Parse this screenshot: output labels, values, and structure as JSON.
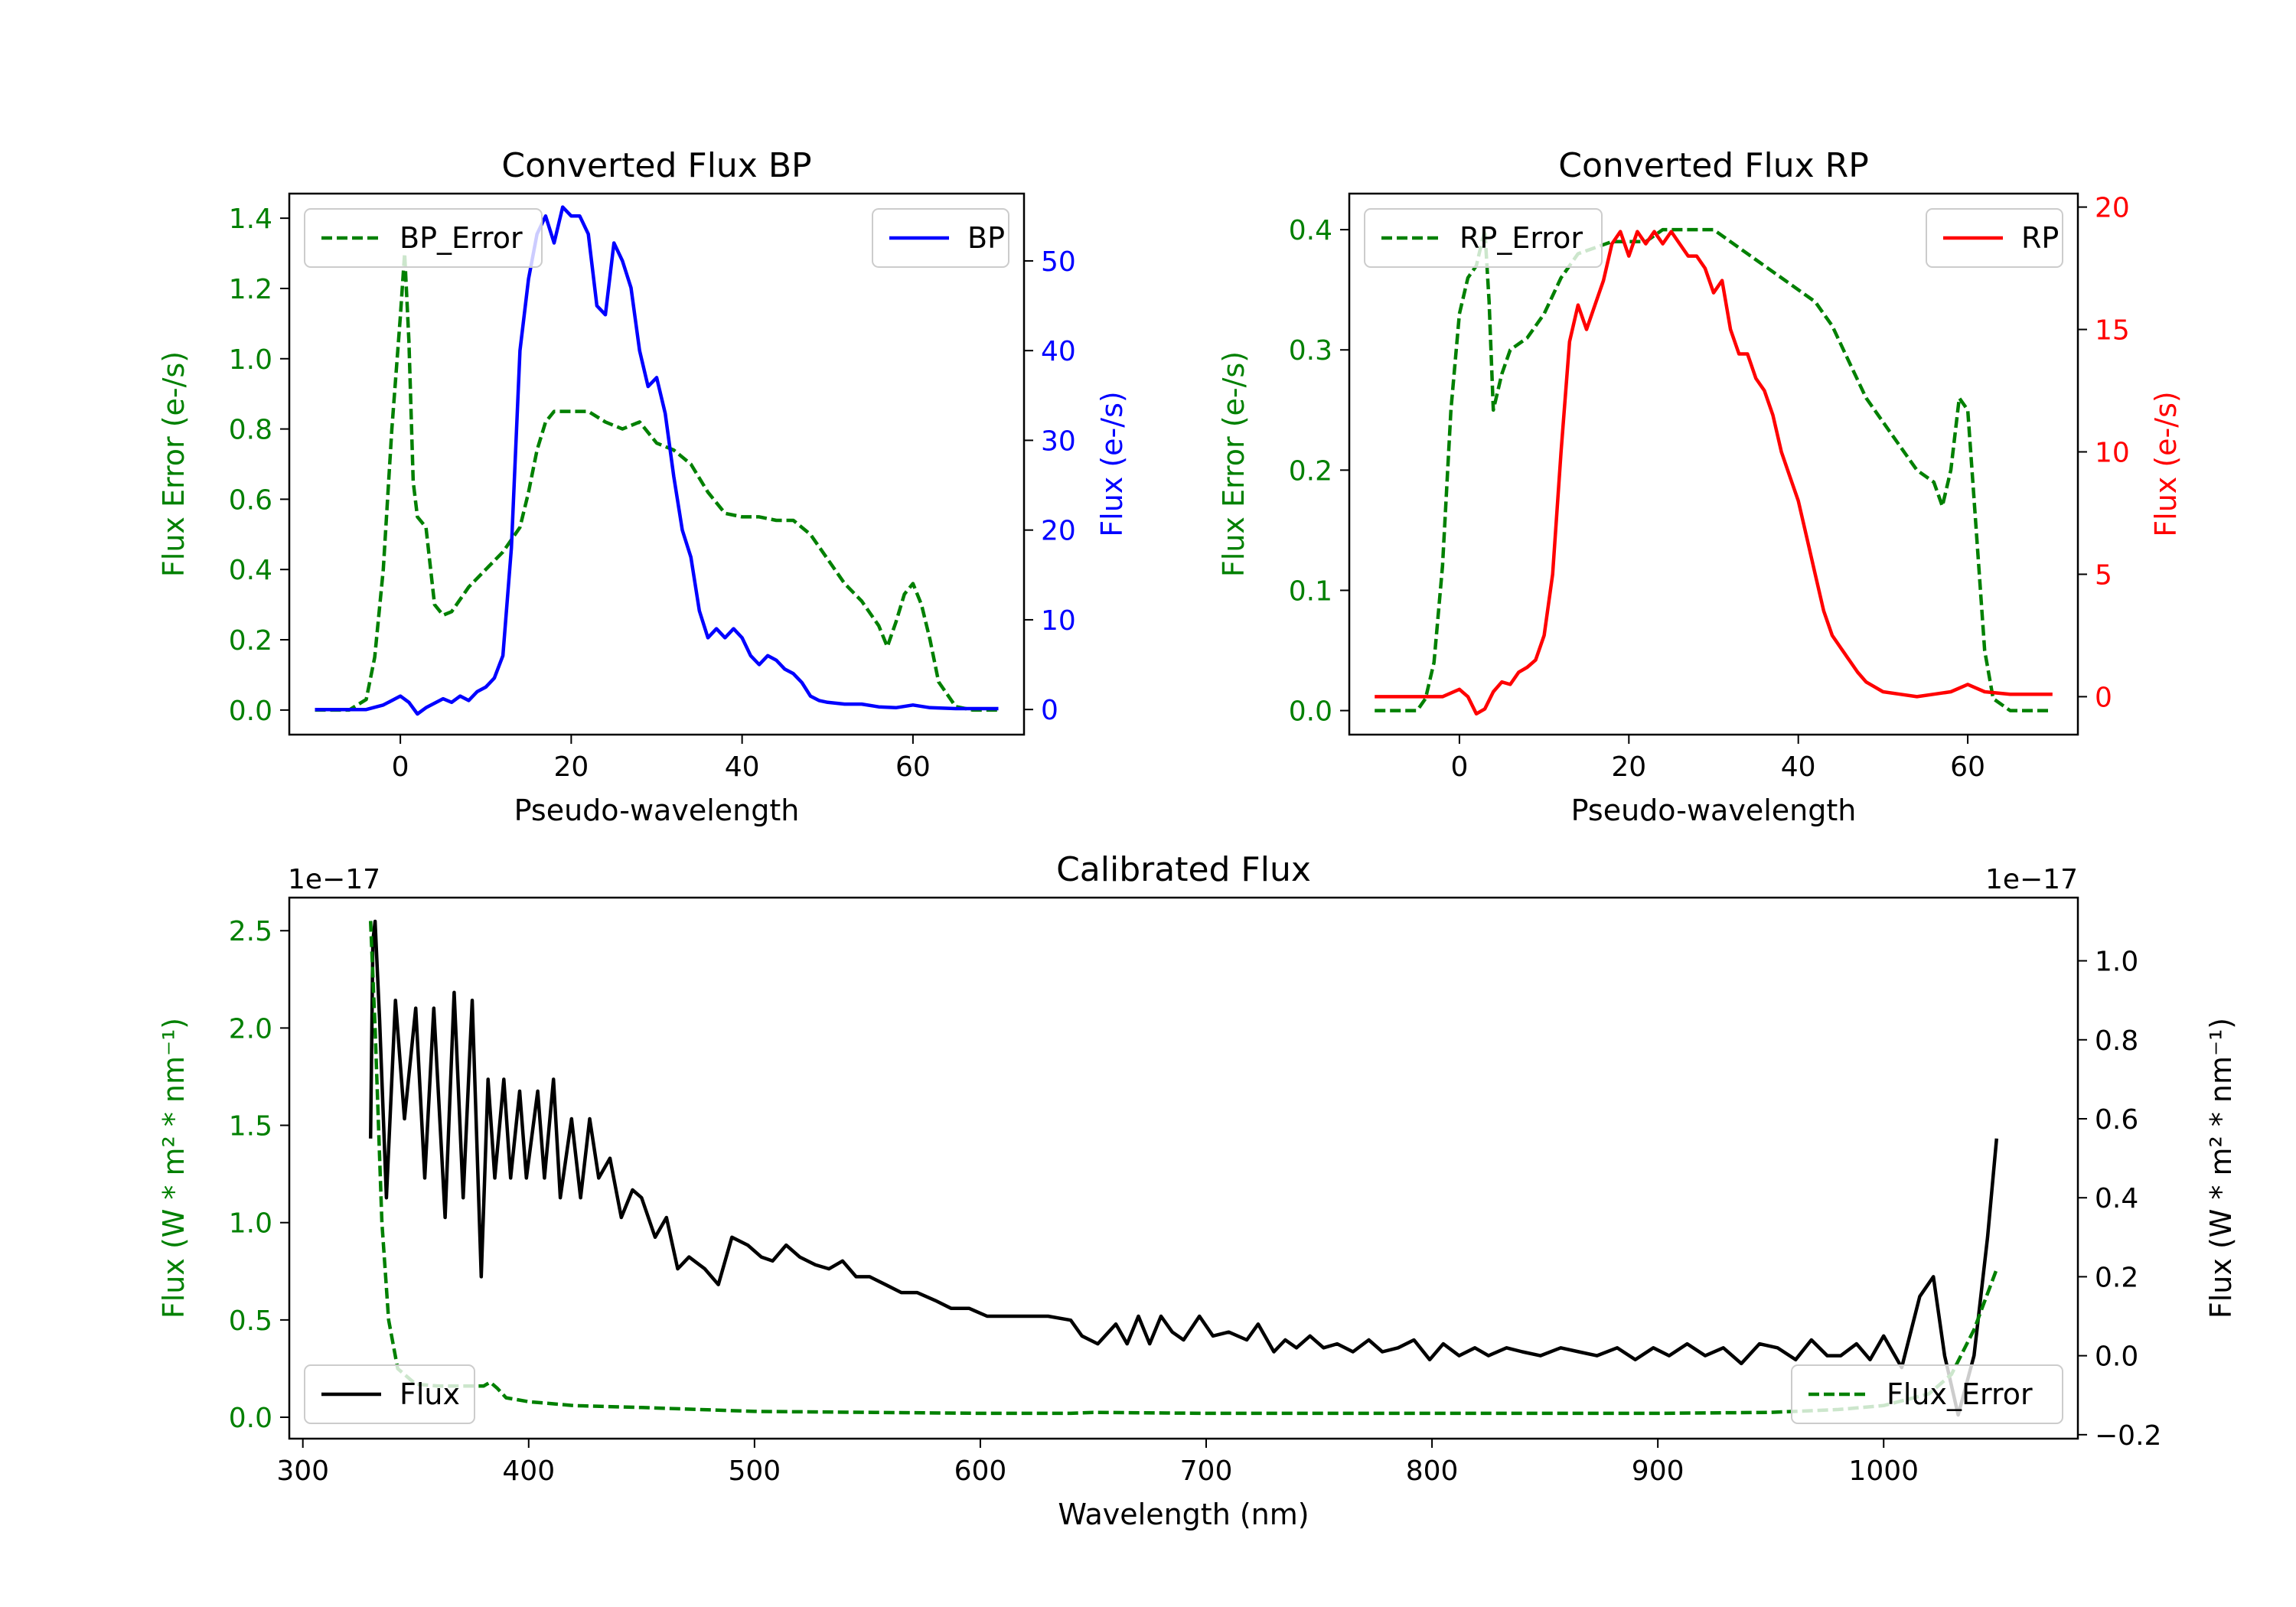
{
  "colors": {
    "error": "#008000",
    "bp": "#0000ff",
    "rp": "#ff0000",
    "flux": "#000000"
  },
  "chart_data": [
    {
      "id": "bp",
      "type": "line",
      "title": "Converted Flux BP",
      "xlabel": "Pseudo-wavelength",
      "ylabel_left": "Flux Error (e-/s)",
      "ylabel_right": "Flux (e-/s)",
      "xlim": [
        -13,
        73
      ],
      "ylim_left": [
        -0.07,
        1.47
      ],
      "ylim_right": [
        -2.8,
        57.5
      ],
      "xticks": [
        0,
        20,
        40,
        60
      ],
      "yticks_left": [
        0.0,
        0.2,
        0.4,
        0.6,
        0.8,
        1.0,
        1.2,
        1.4
      ],
      "yticks_right": [
        0,
        10,
        20,
        30,
        40,
        50
      ],
      "legend_left": "BP_Error",
      "legend_right": "BP",
      "series": [
        {
          "name": "BP_Error",
          "axis": "left",
          "style": "dashed",
          "color": "#008000",
          "x": [
            -10,
            -6,
            -4,
            -3,
            -2,
            -1,
            0,
            0.5,
            1,
            1.5,
            2,
            3,
            4,
            5,
            6,
            8,
            10,
            12,
            14,
            15,
            16,
            17,
            18,
            20,
            22,
            24,
            26,
            28,
            30,
            32,
            34,
            36,
            38,
            40,
            42,
            44,
            46,
            48,
            50,
            52,
            54,
            56,
            57,
            58,
            59,
            60,
            61,
            62,
            63,
            65,
            67,
            70
          ],
          "y": [
            0.0,
            0.0,
            0.03,
            0.15,
            0.4,
            0.8,
            1.12,
            1.3,
            1.05,
            0.65,
            0.55,
            0.52,
            0.3,
            0.27,
            0.28,
            0.35,
            0.4,
            0.45,
            0.52,
            0.62,
            0.74,
            0.82,
            0.85,
            0.85,
            0.85,
            0.82,
            0.8,
            0.82,
            0.76,
            0.74,
            0.7,
            0.62,
            0.56,
            0.55,
            0.55,
            0.54,
            0.54,
            0.5,
            0.43,
            0.36,
            0.31,
            0.24,
            0.18,
            0.25,
            0.33,
            0.36,
            0.3,
            0.2,
            0.08,
            0.01,
            0.0,
            0.0
          ]
        },
        {
          "name": "BP",
          "axis": "right",
          "style": "solid",
          "color": "#0000ff",
          "x": [
            -10,
            -4,
            -2,
            0,
            1,
            2,
            3,
            5,
            6,
            7,
            8,
            9,
            10,
            11,
            12,
            13,
            14,
            15,
            16,
            17,
            18,
            19,
            20,
            21,
            22,
            23,
            24,
            25,
            26,
            27,
            28,
            29,
            30,
            31,
            32,
            33,
            34,
            35,
            36,
            37,
            38,
            39,
            40,
            41,
            42,
            43,
            44,
            45,
            46,
            47,
            48,
            49,
            50,
            52,
            54,
            56,
            58,
            60,
            62,
            65,
            70
          ],
          "y": [
            0,
            0,
            0.5,
            1.5,
            0.8,
            -0.5,
            0.2,
            1.2,
            0.8,
            1.5,
            1.0,
            2.0,
            2.5,
            3.5,
            6.0,
            18.0,
            40.0,
            48.0,
            53.0,
            55.0,
            52.0,
            56.0,
            55.0,
            55.0,
            53.0,
            45.0,
            44.0,
            52.0,
            50.0,
            47.0,
            40.0,
            36.0,
            37.0,
            33.0,
            26.0,
            20.0,
            17.0,
            11.0,
            8.0,
            9.0,
            8.0,
            9.0,
            8.0,
            6.0,
            5.0,
            6.0,
            5.5,
            4.5,
            4.0,
            3.0,
            1.5,
            1.0,
            0.8,
            0.6,
            0.6,
            0.3,
            0.2,
            0.5,
            0.2,
            0.1,
            0.1
          ]
        }
      ]
    },
    {
      "id": "rp",
      "type": "line",
      "title": "Converted Flux RP",
      "xlabel": "Pseudo-wavelength",
      "ylabel_left": "Flux Error (e-/s)",
      "ylabel_right": "Flux (e-/s)",
      "xlim": [
        -13,
        73
      ],
      "ylim_left": [
        -0.02,
        0.43
      ],
      "ylim_right": [
        -1.55,
        20.55
      ],
      "xticks": [
        0,
        20,
        40,
        60
      ],
      "yticks_left": [
        0.0,
        0.1,
        0.2,
        0.3,
        0.4
      ],
      "yticks_right": [
        0,
        5,
        10,
        15,
        20
      ],
      "legend_left": "RP_Error",
      "legend_right": "RP",
      "series": [
        {
          "name": "RP_Error",
          "axis": "left",
          "style": "dashed",
          "color": "#008000",
          "x": [
            -10,
            -5,
            -4,
            -3,
            -2,
            -1,
            0,
            1,
            2,
            3,
            3.5,
            4,
            5,
            6,
            8,
            10,
            12,
            14,
            16,
            18,
            20,
            22,
            24,
            26,
            28,
            30,
            32,
            34,
            36,
            38,
            40,
            42,
            44,
            46,
            48,
            50,
            52,
            54,
            55,
            56,
            57,
            58,
            59,
            60,
            61,
            62,
            63,
            65,
            70
          ],
          "y": [
            0.0,
            0.0,
            0.01,
            0.04,
            0.12,
            0.25,
            0.33,
            0.36,
            0.37,
            0.4,
            0.34,
            0.25,
            0.28,
            0.3,
            0.31,
            0.33,
            0.36,
            0.38,
            0.385,
            0.39,
            0.39,
            0.39,
            0.4,
            0.4,
            0.4,
            0.4,
            0.39,
            0.38,
            0.37,
            0.36,
            0.35,
            0.34,
            0.32,
            0.29,
            0.26,
            0.24,
            0.22,
            0.2,
            0.195,
            0.19,
            0.17,
            0.2,
            0.26,
            0.25,
            0.15,
            0.05,
            0.01,
            0.0,
            0.0
          ]
        },
        {
          "name": "RP",
          "axis": "right",
          "style": "solid",
          "color": "#ff0000",
          "x": [
            -10,
            -2,
            0,
            1,
            2,
            3,
            4,
            5,
            6,
            7,
            8,
            9,
            10,
            11,
            12,
            13,
            14,
            15,
            16,
            17,
            18,
            19,
            20,
            21,
            22,
            23,
            24,
            25,
            26,
            27,
            28,
            29,
            30,
            31,
            32,
            33,
            34,
            35,
            36,
            37,
            38,
            39,
            40,
            41,
            42,
            43,
            44,
            45,
            46,
            47,
            48,
            49,
            50,
            52,
            54,
            56,
            58,
            60,
            62,
            65,
            70
          ],
          "y": [
            0,
            0,
            0.3,
            0.0,
            -0.7,
            -0.5,
            0.2,
            0.6,
            0.5,
            1.0,
            1.2,
            1.5,
            2.5,
            5.0,
            10.0,
            14.5,
            16.0,
            15.0,
            16.0,
            17.0,
            18.5,
            19.0,
            18.0,
            19.0,
            18.5,
            19.0,
            18.5,
            19.0,
            18.5,
            18.0,
            18.0,
            17.5,
            16.5,
            17.0,
            15.0,
            14.0,
            14.0,
            13.0,
            12.5,
            11.5,
            10.0,
            9.0,
            8.0,
            6.5,
            5.0,
            3.5,
            2.5,
            2.0,
            1.5,
            1.0,
            0.6,
            0.4,
            0.2,
            0.1,
            0.0,
            0.1,
            0.2,
            0.5,
            0.2,
            0.1,
            0.1
          ]
        }
      ]
    },
    {
      "id": "cal",
      "type": "line",
      "title": "Calibrated Flux",
      "xlabel": "Wavelength (nm)",
      "ylabel_left": "Flux (W * m² * nm⁻¹)",
      "ylabel_right": "Flux (W * m² * nm⁻¹)",
      "offset_left": "1e−17",
      "offset_right": "1e−17",
      "xlim": [
        294,
        1086
      ],
      "ylim_left": [
        -0.11,
        2.67
      ],
      "ylim_right": [
        -0.21,
        1.16
      ],
      "xticks": [
        300,
        400,
        500,
        600,
        700,
        800,
        900,
        1000
      ],
      "yticks_left": [
        0.0,
        0.5,
        1.0,
        1.5,
        2.0,
        2.5
      ],
      "ytick_labels_left": [
        "0.0",
        "0.5",
        "1.0",
        "1.5",
        "2.0",
        "2.5"
      ],
      "yticks_right": [
        -0.2,
        0.0,
        0.2,
        0.4,
        0.6,
        0.8,
        1.0
      ],
      "ytick_labels_right": [
        "−0.2",
        "0.0",
        "0.2",
        "0.4",
        "0.6",
        "0.8",
        "1.0"
      ],
      "legend_left": "Flux",
      "legend_right": "Flux_Error",
      "series": [
        {
          "name": "Flux_Error",
          "axis": "left",
          "style": "dashed",
          "color": "#008000",
          "x": [
            330,
            332,
            335,
            338,
            342,
            350,
            360,
            370,
            380,
            383,
            386,
            390,
            400,
            420,
            450,
            500,
            600,
            640,
            650,
            700,
            800,
            900,
            950,
            980,
            1000,
            1020,
            1030,
            1040,
            1050
          ],
          "y": [
            2.55,
            2.0,
            1.0,
            0.5,
            0.25,
            0.17,
            0.16,
            0.16,
            0.16,
            0.18,
            0.15,
            0.1,
            0.08,
            0.06,
            0.05,
            0.03,
            0.02,
            0.02,
            0.025,
            0.02,
            0.02,
            0.02,
            0.025,
            0.04,
            0.06,
            0.12,
            0.22,
            0.45,
            0.76
          ]
        },
        {
          "name": "Flux",
          "axis": "right",
          "style": "solid",
          "color": "#000000",
          "x": [
            330,
            331,
            332,
            334,
            337,
            341,
            345,
            350,
            354,
            358,
            363,
            367,
            371,
            375,
            379,
            382,
            385,
            389,
            392,
            396,
            399,
            404,
            407,
            411,
            414,
            419,
            423,
            427,
            431,
            436,
            441,
            446,
            450,
            456,
            461,
            466,
            471,
            478,
            484,
            490,
            497,
            503,
            508,
            514,
            520,
            527,
            533,
            539,
            545,
            551,
            558,
            565,
            572,
            580,
            587,
            595,
            603,
            611,
            620,
            630,
            640,
            645,
            652,
            660,
            665,
            670,
            675,
            680,
            685,
            690,
            697,
            703,
            710,
            718,
            723,
            730,
            735,
            740,
            746,
            752,
            758,
            765,
            772,
            778,
            785,
            792,
            799,
            805,
            812,
            819,
            825,
            833,
            840,
            848,
            857,
            865,
            873,
            882,
            890,
            898,
            905,
            913,
            921,
            929,
            937,
            945,
            953,
            961,
            968,
            975,
            981,
            988,
            994,
            1000,
            1008,
            1016,
            1022,
            1027,
            1033,
            1040,
            1046,
            1050
          ],
          "y": [
            0.55,
            1.05,
            1.1,
            0.85,
            0.4,
            0.9,
            0.6,
            0.88,
            0.45,
            0.88,
            0.35,
            0.92,
            0.4,
            0.9,
            0.2,
            0.7,
            0.45,
            0.7,
            0.45,
            0.67,
            0.45,
            0.67,
            0.45,
            0.7,
            0.4,
            0.6,
            0.4,
            0.6,
            0.45,
            0.5,
            0.35,
            0.42,
            0.4,
            0.3,
            0.35,
            0.22,
            0.25,
            0.22,
            0.18,
            0.3,
            0.28,
            0.25,
            0.24,
            0.28,
            0.25,
            0.23,
            0.22,
            0.24,
            0.2,
            0.2,
            0.18,
            0.16,
            0.16,
            0.14,
            0.12,
            0.12,
            0.1,
            0.1,
            0.1,
            0.1,
            0.09,
            0.05,
            0.03,
            0.08,
            0.03,
            0.1,
            0.03,
            0.1,
            0.06,
            0.04,
            0.1,
            0.05,
            0.06,
            0.04,
            0.08,
            0.01,
            0.04,
            0.02,
            0.05,
            0.02,
            0.03,
            0.01,
            0.04,
            0.01,
            0.02,
            0.04,
            -0.01,
            0.03,
            0.0,
            0.02,
            0.0,
            0.02,
            0.01,
            0.0,
            0.02,
            0.01,
            0.0,
            0.02,
            -0.01,
            0.02,
            0.0,
            0.03,
            0.0,
            0.02,
            -0.02,
            0.03,
            0.02,
            -0.01,
            0.04,
            0.0,
            0.0,
            0.03,
            -0.01,
            0.05,
            -0.03,
            0.15,
            0.2,
            0.0,
            -0.15,
            0.0,
            0.3,
            0.55
          ]
        }
      ]
    }
  ]
}
